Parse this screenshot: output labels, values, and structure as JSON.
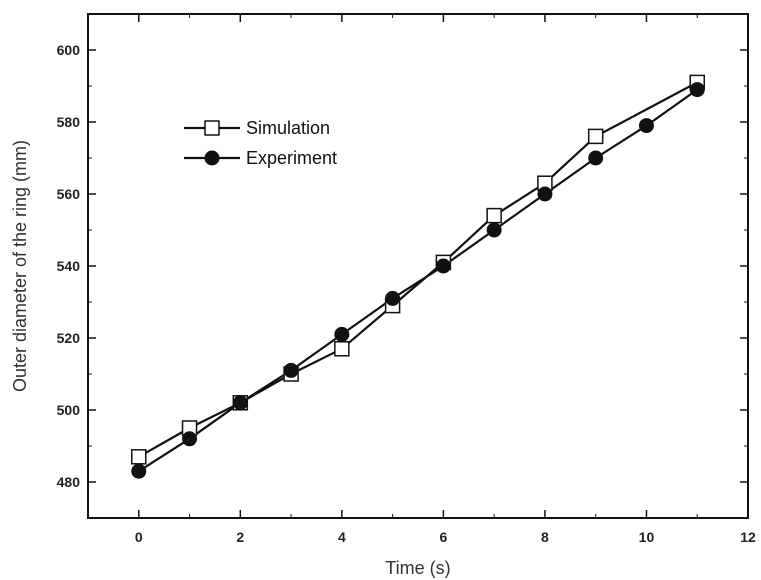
{
  "chart_data": {
    "type": "line",
    "title": "",
    "xlabel": "Time (s)",
    "ylabel": "Outer diameter of the ring (mm)",
    "xlim": [
      -1,
      12
    ],
    "ylim": [
      470,
      610
    ],
    "xticks": [
      0,
      2,
      4,
      6,
      8,
      10,
      12
    ],
    "yticks": [
      480,
      500,
      520,
      540,
      560,
      580,
      600
    ],
    "grid": false,
    "legend": "upper-left",
    "series": [
      {
        "name": "Simulation",
        "marker": "open-square",
        "color": "#111111",
        "x": [
          0,
          1,
          2,
          3,
          4,
          5,
          6,
          7,
          8,
          9,
          11
        ],
        "y": [
          487,
          495,
          502,
          510,
          517,
          529,
          541,
          554,
          563,
          576,
          591
        ]
      },
      {
        "name": "Experiment",
        "marker": "filled-circle",
        "color": "#111111",
        "x": [
          0,
          1,
          2,
          3,
          4,
          5,
          6,
          7,
          8,
          9,
          10,
          11
        ],
        "y": [
          483,
          492,
          502,
          511,
          521,
          531,
          540,
          550,
          560,
          570,
          579,
          589
        ]
      }
    ]
  }
}
